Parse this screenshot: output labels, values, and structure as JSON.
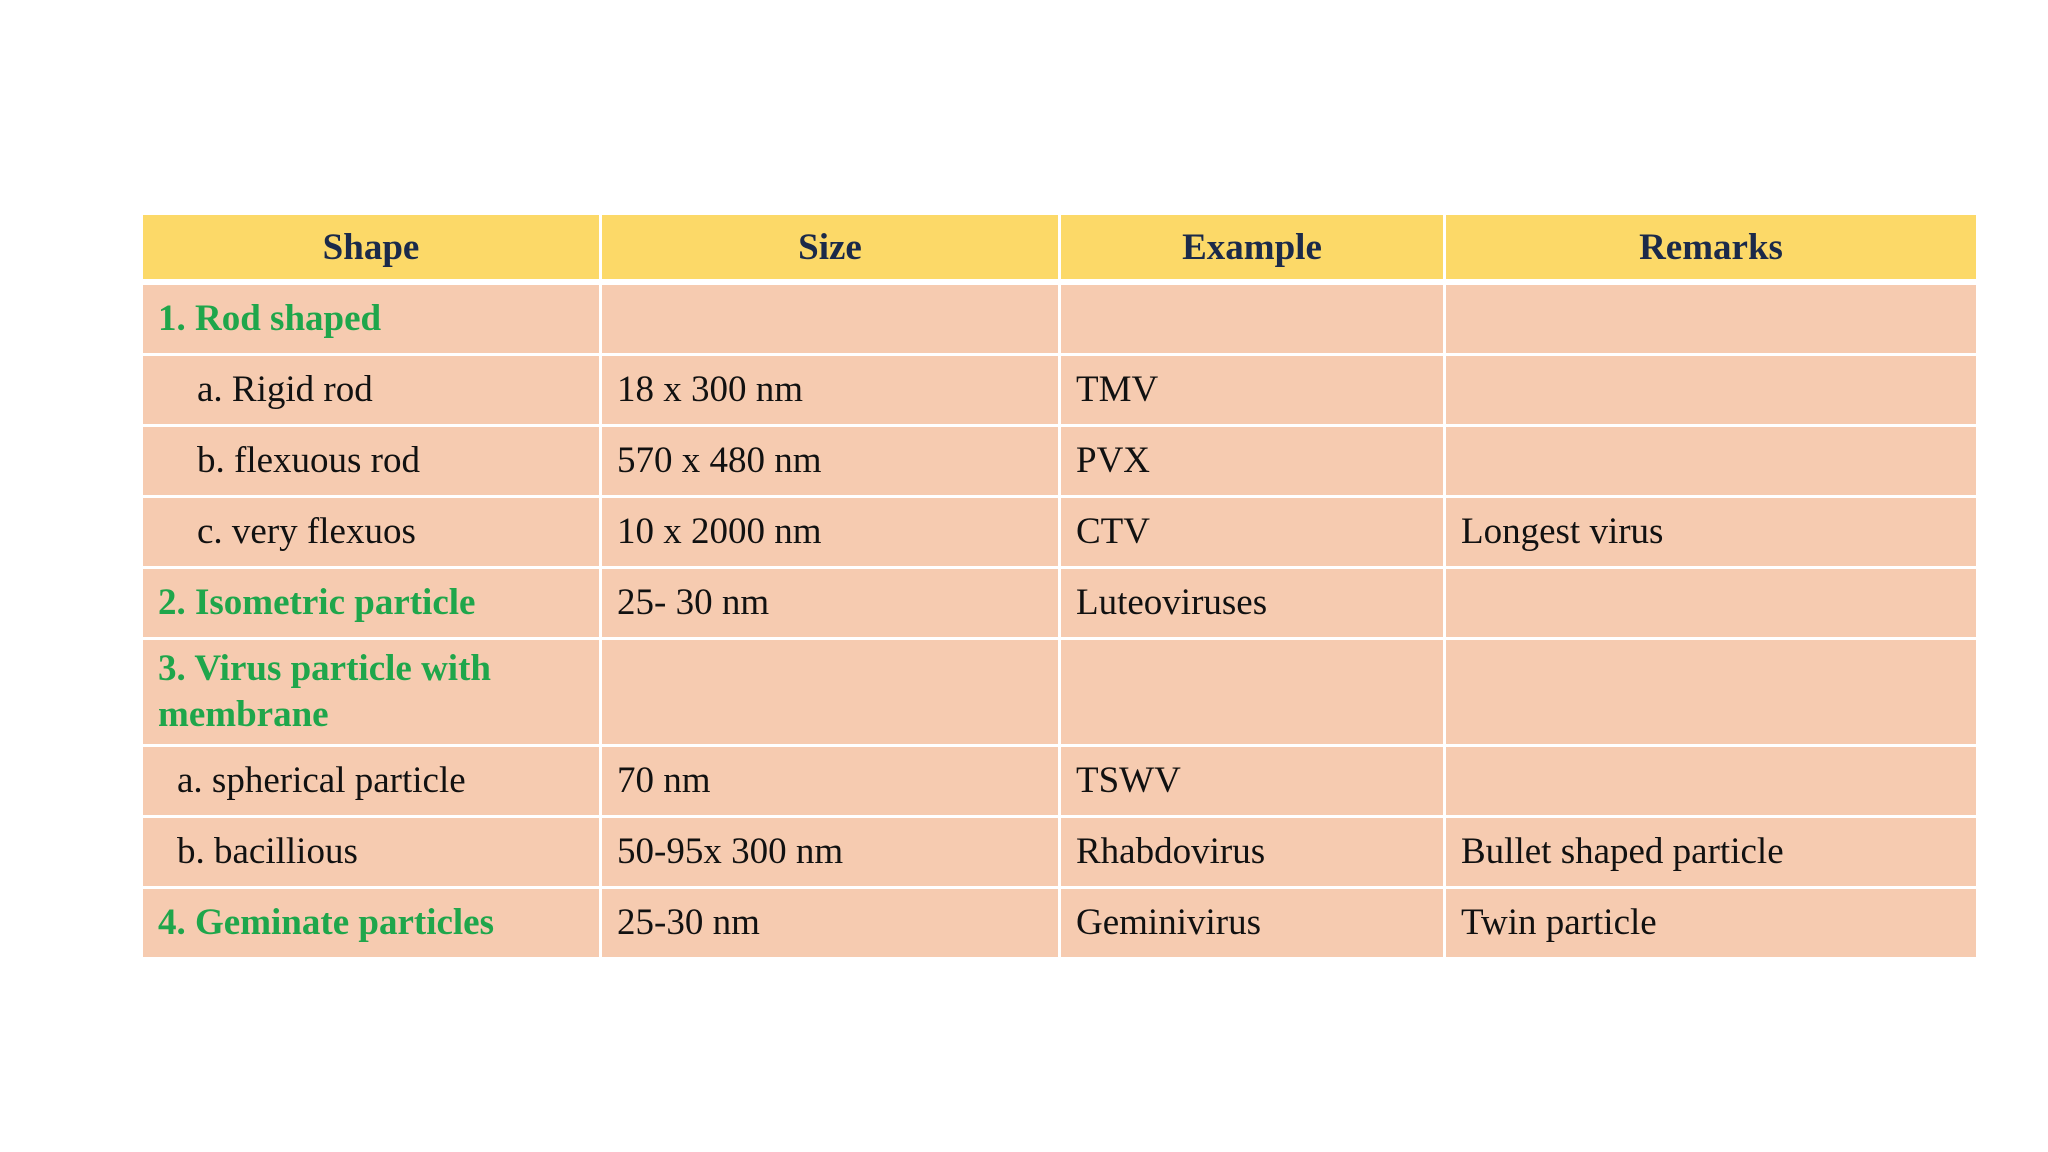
{
  "table": {
    "headers": [
      "Shape",
      "Size",
      "Example",
      "Remarks"
    ],
    "rows": [
      {
        "shape": "1. Rod shaped",
        "size": "",
        "example": "",
        "remarks": ""
      },
      {
        "shape": "a. Rigid rod",
        "size": "18 x 300 nm",
        "example": "TMV",
        "remarks": ""
      },
      {
        "shape": "b. flexuous rod",
        "size": "570 x 480 nm",
        "example": "PVX",
        "remarks": ""
      },
      {
        "shape": "c. very flexuos",
        "size": "10 x 2000 nm",
        "example": "CTV",
        "remarks": "Longest virus"
      },
      {
        "shape": "2. Isometric particle",
        "size": "25- 30 nm",
        "example": "Luteoviruses",
        "remarks": ""
      },
      {
        "shape": "3. Virus particle with membrane",
        "size": "",
        "example": "",
        "remarks": ""
      },
      {
        "shape": "a. spherical particle",
        "size": "70 nm",
        "example": "TSWV",
        "remarks": ""
      },
      {
        "shape": "b. bacillious",
        "size": "50-95x 300 nm",
        "example": "Rhabdovirus",
        "remarks": "Bullet shaped particle"
      },
      {
        "shape": "4. Geminate particles",
        "size": "25-30 nm",
        "example": "Geminivirus",
        "remarks": "Twin particle"
      }
    ]
  },
  "colors": {
    "header_bg": "#fcd968",
    "header_text": "#1b2a4a",
    "cell_bg": "#f6cbb0",
    "category_text": "#1fa64b"
  }
}
